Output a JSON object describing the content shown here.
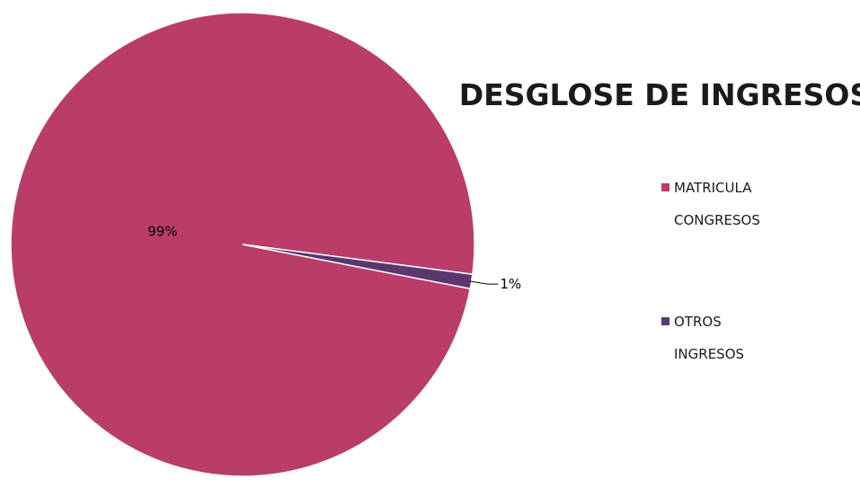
{
  "chart_data": {
    "type": "pie",
    "title": "DESGLOSE DE INGRESOS",
    "categories": [
      "MATRICULA CONGRESOS",
      "OTROS INGRESOS"
    ],
    "values": [
      99,
      1
    ],
    "labels": [
      "99%",
      "1%"
    ],
    "colors": [
      "#b93d68",
      "#5b3770"
    ],
    "legend": {
      "placement": "right",
      "entries": [
        {
          "lines": [
            "MATRICULA",
            "CONGRESOS"
          ]
        },
        {
          "lines": [
            "OTROS",
            "INGRESOS"
          ]
        }
      ]
    }
  }
}
